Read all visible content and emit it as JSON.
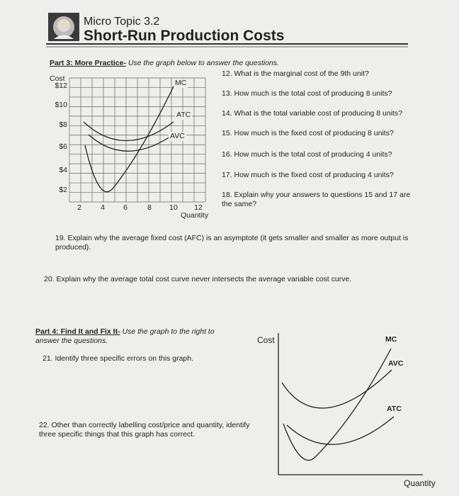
{
  "header": {
    "topic": "Micro Topic 3.2",
    "title": "Short-Run Production Costs"
  },
  "part3": {
    "heading": "Part 3: More Practice-",
    "instructions": "Use the graph below to answer the questions."
  },
  "graph1": {
    "y_label": "Cost",
    "x_label": "Quantity",
    "y_ticks": [
      "$12",
      "$10",
      "$8",
      "$6",
      "$4",
      "$2"
    ],
    "x_ticks": [
      "2",
      "4",
      "6",
      "8",
      "10",
      "12"
    ],
    "curve_labels": [
      "MC",
      "ATC",
      "AVC"
    ]
  },
  "questions_part3": [
    "12. What is the marginal cost of the 9th unit?",
    "13. How much is the total cost of producing 8 units?",
    "14. What is the total variable cost of producing 8 units?",
    "15. How much is the fixed cost of producing 8 units?",
    "16. How much is the total cost of producing 4 units?",
    "17. How much is the fixed cost of producing 4 units?",
    "18. Explain why your answers to questions 15 and 17 are the same?"
  ],
  "question19": "19. Explain why the average fixed cost (AFC) is an asymptote (it gets smaller and smaller as more output is produced).",
  "question20": "20. Explain why the average total cost curve never intersects the average variable cost curve.",
  "part4": {
    "heading": "Part 4: Find It and Fix It-",
    "instructions": "Use the graph to the right to answer the questions.",
    "question21": "21. Identify three specific errors on this graph.",
    "question22": "22. Other than correctly labelling cost/price and quantity, identify three specific things that this graph has correct."
  },
  "graph2": {
    "y_label": "Cost",
    "x_label": "Quantity",
    "curve_labels": [
      "MC",
      "AVC",
      "ATC"
    ]
  }
}
